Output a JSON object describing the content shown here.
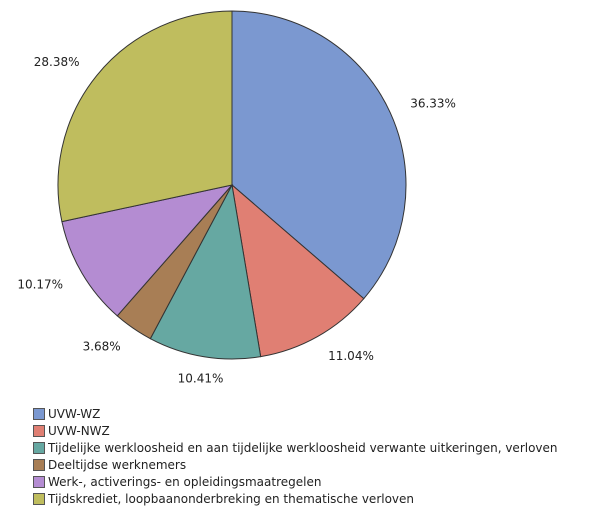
{
  "chart_data": {
    "type": "pie",
    "slices": [
      {
        "label": "UVW-WZ",
        "value": 36.33,
        "value_label": "36.33%",
        "color": "#7b98d0"
      },
      {
        "label": "UVW-NWZ",
        "value": 11.04,
        "value_label": "11.04%",
        "color": "#e07f73"
      },
      {
        "label": "Tijdelijke werkloosheid en aan tijdelijke werkloosheid verwante uitkeringen, verloven",
        "value": 10.41,
        "value_label": "10.41%",
        "color": "#66a8a2"
      },
      {
        "label": "Deeltijdse werknemers",
        "value": 3.68,
        "value_label": "3.68%",
        "color": "#a87e55"
      },
      {
        "label": "Werk-, activerings- en opleidingsmaatregelen",
        "value": 10.17,
        "value_label": "10.17%",
        "color": "#b48cd2"
      },
      {
        "label": "Tijdskrediet, loopbaanonderbreking en thematische verloven",
        "value": 28.38,
        "value_label": "28.38%",
        "color": "#bfbd5e"
      }
    ],
    "legend_placement": "bottom-left",
    "start_angle": "12 o'clock",
    "direction": "clockwise"
  }
}
